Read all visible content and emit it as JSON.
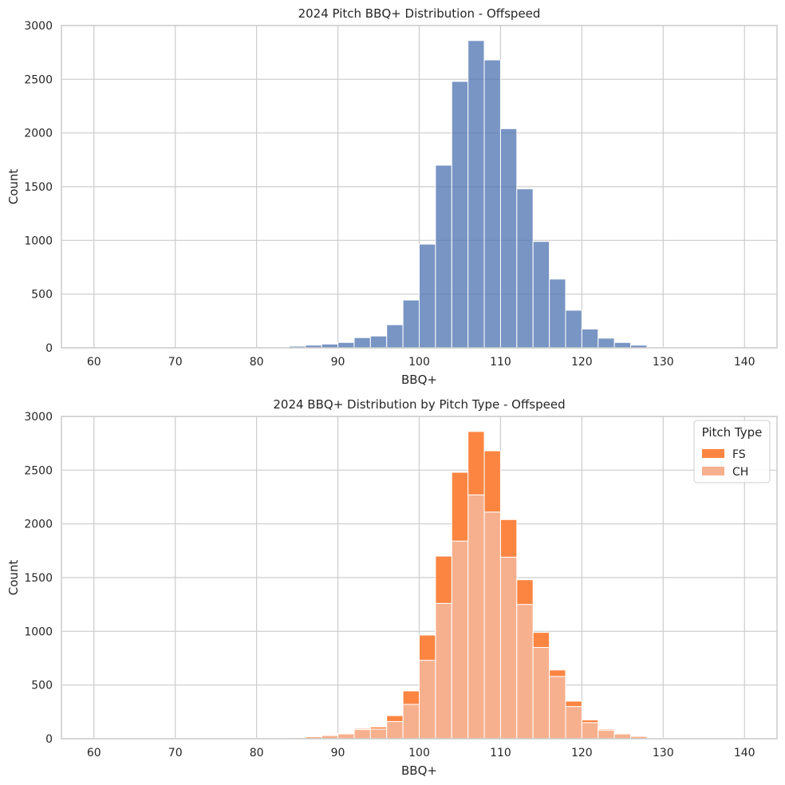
{
  "chart_data": [
    {
      "type": "bar",
      "title": "2024 Pitch BBQ+ Distribution - Offspeed",
      "xlabel": "BBQ+",
      "ylabel": "Count",
      "xlim": [
        56,
        144
      ],
      "ylim": [
        0,
        3000
      ],
      "xticks": [
        60,
        70,
        80,
        90,
        100,
        110,
        120,
        130,
        140
      ],
      "yticks": [
        0,
        500,
        1000,
        1500,
        2000,
        2500,
        3000
      ],
      "grid": true,
      "bin_width": 2,
      "bin_starts": [
        60,
        62,
        64,
        66,
        68,
        70,
        72,
        74,
        76,
        78,
        80,
        82,
        84,
        86,
        88,
        90,
        92,
        94,
        96,
        98,
        100,
        102,
        104,
        106,
        108,
        110,
        112,
        114,
        116,
        118,
        120,
        122,
        124,
        126,
        128,
        130,
        132,
        134,
        136,
        138
      ],
      "series": [
        {
          "color": "#4c72b0",
          "values": [
            2,
            2,
            2,
            2,
            2,
            2,
            2,
            2,
            2,
            2,
            3,
            5,
            15,
            25,
            35,
            50,
            95,
            110,
            215,
            445,
            965,
            1700,
            2480,
            2860,
            2680,
            2040,
            1480,
            990,
            640,
            350,
            175,
            90,
            50,
            25,
            5,
            2,
            2,
            2,
            2,
            2
          ]
        }
      ]
    },
    {
      "type": "bar",
      "stacked": true,
      "title": "2024 BBQ+ Distribution by Pitch Type - Offspeed",
      "xlabel": "BBQ+",
      "ylabel": "Count",
      "xlim": [
        56,
        144
      ],
      "ylim": [
        0,
        3000
      ],
      "xticks": [
        60,
        70,
        80,
        90,
        100,
        110,
        120,
        130,
        140
      ],
      "yticks": [
        0,
        500,
        1000,
        1500,
        2000,
        2500,
        3000
      ],
      "grid": true,
      "bin_width": 2,
      "bin_starts": [
        60,
        62,
        64,
        66,
        68,
        70,
        72,
        74,
        76,
        78,
        80,
        82,
        84,
        86,
        88,
        90,
        92,
        94,
        96,
        98,
        100,
        102,
        104,
        106,
        108,
        110,
        112,
        114,
        116,
        118,
        120,
        122,
        124,
        126,
        128,
        130,
        132,
        134,
        136,
        138
      ],
      "legend": {
        "title": "Pitch Type",
        "placement": "top-right",
        "entries": [
          "FS",
          "CH"
        ]
      },
      "series": [
        {
          "name": "CH",
          "color": "#f7b08e",
          "values": [
            2,
            2,
            2,
            2,
            2,
            2,
            2,
            2,
            2,
            2,
            3,
            5,
            10,
            20,
            30,
            45,
            85,
            90,
            160,
            320,
            730,
            1260,
            1840,
            2270,
            2110,
            1690,
            1250,
            850,
            580,
            300,
            150,
            80,
            45,
            22,
            4,
            2,
            2,
            2,
            2,
            2
          ]
        },
        {
          "name": "FS",
          "color": "#fc8542",
          "values": [
            0,
            0,
            0,
            0,
            0,
            0,
            0,
            0,
            0,
            0,
            0,
            0,
            5,
            5,
            5,
            5,
            10,
            20,
            55,
            125,
            235,
            440,
            640,
            590,
            570,
            350,
            230,
            140,
            60,
            50,
            25,
            10,
            5,
            3,
            1,
            0,
            0,
            0,
            0,
            0
          ]
        }
      ]
    }
  ]
}
